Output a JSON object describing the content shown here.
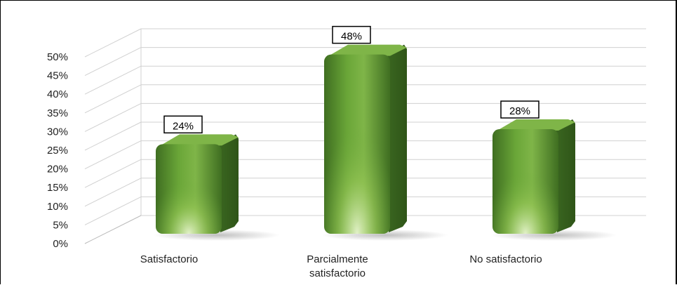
{
  "chart_data": {
    "type": "bar",
    "style": "3d-cylinder",
    "categories": [
      [
        "Satisfactorio"
      ],
      [
        "Parcialmente",
        "satisfactorio"
      ],
      [
        "No satisfactorio"
      ]
    ],
    "values": [
      0.24,
      0.48,
      0.28
    ],
    "data_labels": [
      "24%",
      "48%",
      "28%"
    ],
    "y_ticks": [
      "0%",
      "5%",
      "10%",
      "15%",
      "20%",
      "25%",
      "30%",
      "35%",
      "40%",
      "45%",
      "50%"
    ],
    "ylim": [
      0,
      0.5
    ],
    "grid": true,
    "legend": "none",
    "colors": {
      "bar_light": "#9ccb5a",
      "bar_mid": "#6aa638",
      "bar_dark": "#3f6e21",
      "bar_side": "#2f5518",
      "bar_top": "#7fb548",
      "gridline": "#d0d0d0"
    }
  }
}
